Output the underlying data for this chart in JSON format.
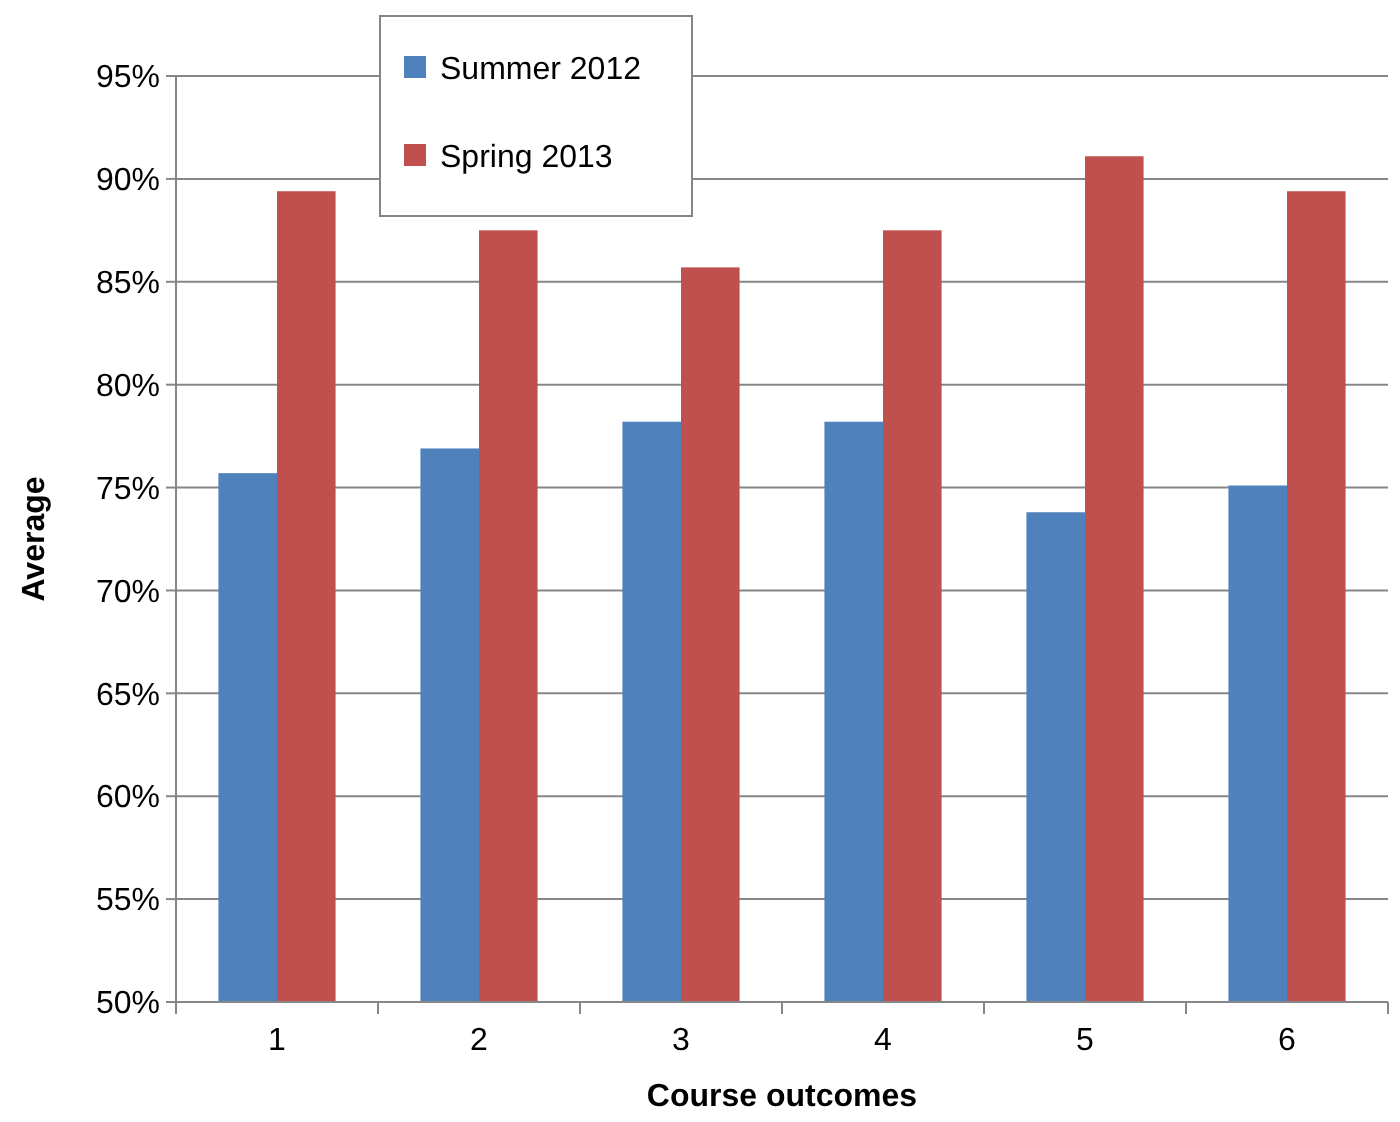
{
  "chart_data": {
    "type": "bar",
    "xlabel": "Course outcomes",
    "ylabel": "Average",
    "categories": [
      "1",
      "2",
      "3",
      "4",
      "5",
      "6"
    ],
    "series": [
      {
        "name": "Summer 2012",
        "color": "#4f81bd",
        "values": [
          75.7,
          76.9,
          78.2,
          78.2,
          73.8,
          75.1
        ]
      },
      {
        "name": "Spring 2013",
        "color": "#c0504d",
        "values": [
          89.4,
          87.5,
          85.7,
          87.5,
          91.1,
          89.4
        ]
      }
    ],
    "ylim": [
      50,
      95
    ],
    "yticks": [
      {
        "value": 50,
        "label": "50%"
      },
      {
        "value": 55,
        "label": "55%"
      },
      {
        "value": 60,
        "label": "60%"
      },
      {
        "value": 65,
        "label": "65%"
      },
      {
        "value": 70,
        "label": "70%"
      },
      {
        "value": 75,
        "label": "75%"
      },
      {
        "value": 80,
        "label": "80%"
      },
      {
        "value": 85,
        "label": "85%"
      },
      {
        "value": 90,
        "label": "90%"
      },
      {
        "value": 95,
        "label": "95%"
      }
    ],
    "grid": "y",
    "legend": "top left"
  }
}
